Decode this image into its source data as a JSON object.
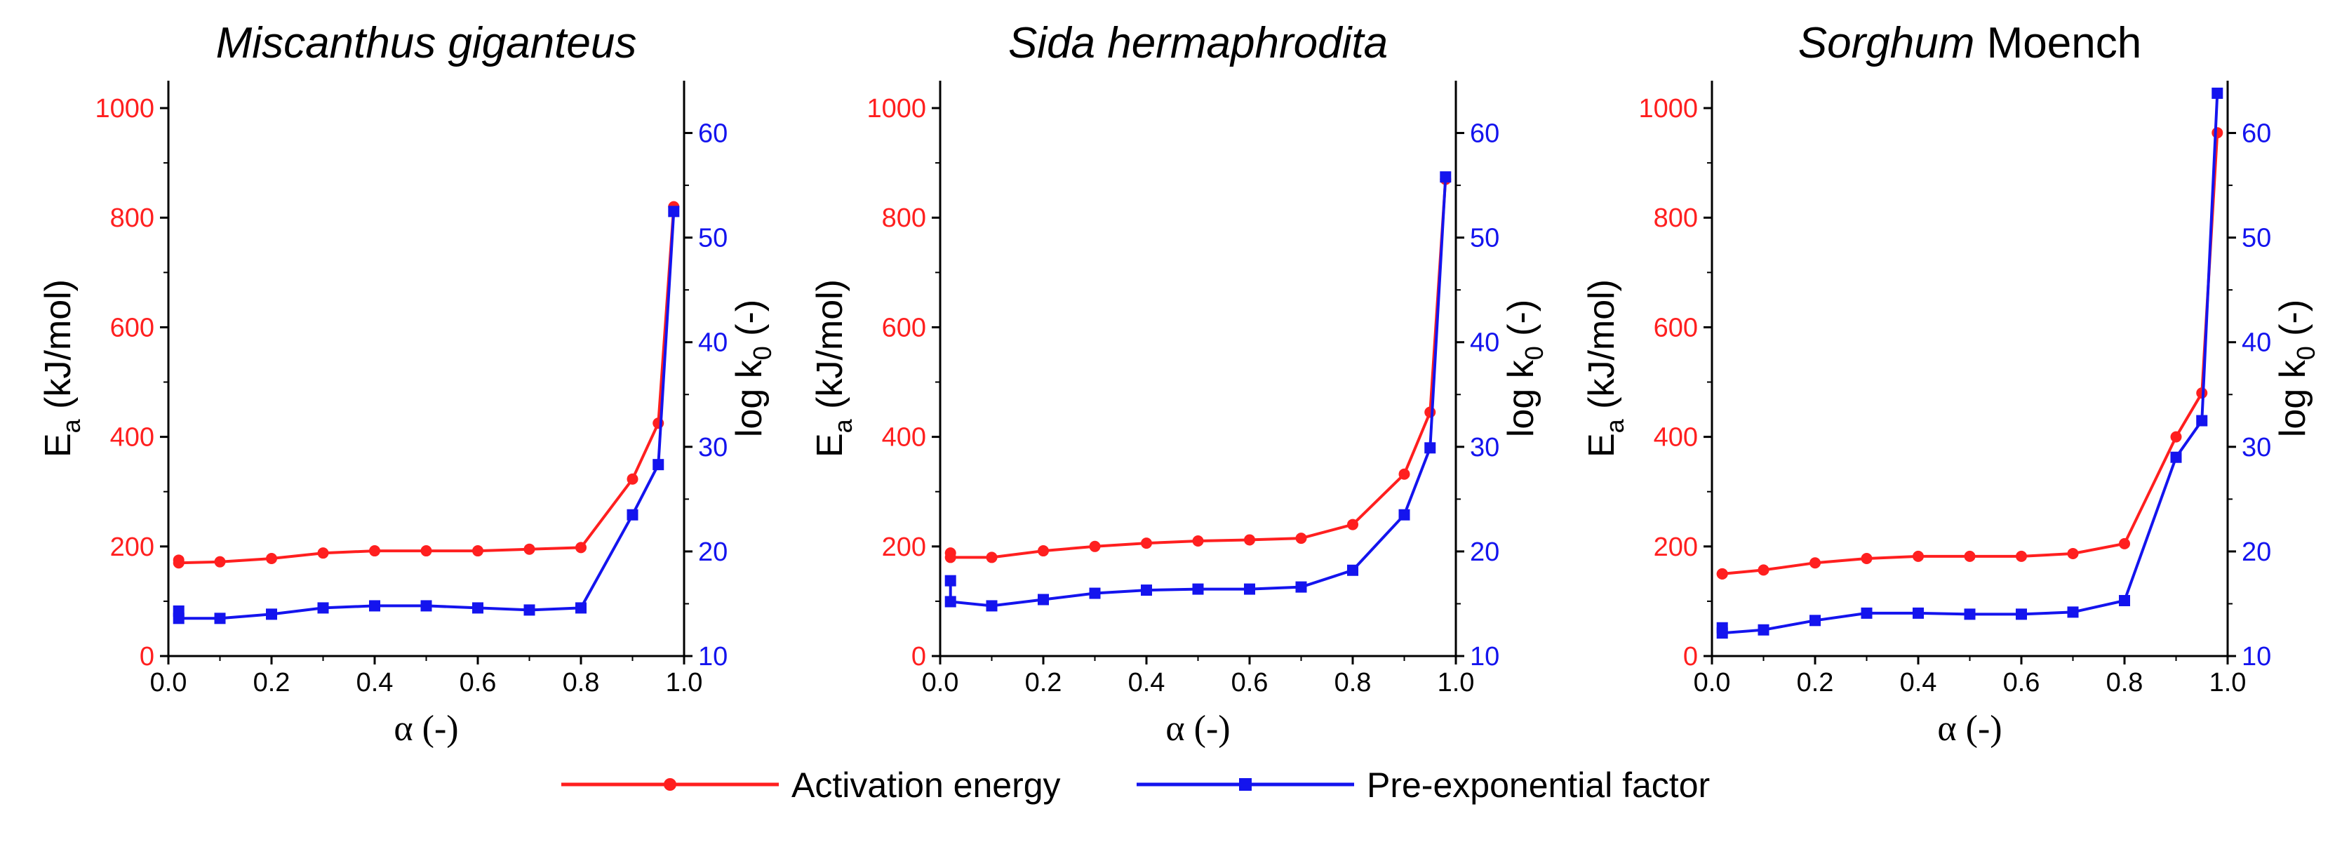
{
  "colors": {
    "energy": "#ff1f1f",
    "factor": "#1414ee",
    "axis": "#000000"
  },
  "legend": {
    "energy_label": "Activation energy",
    "factor_label": "Pre-exponential factor"
  },
  "chart_data": [
    {
      "type": "line",
      "title_italic": "Miscanthus giganteus",
      "title_plain": "",
      "xlabel": "α (-)",
      "ylabel_left": "E",
      "ylabel_left_sub": "a",
      "ylabel_left_unit": " (kJ/mol)",
      "ylabel_right": "log k",
      "ylabel_right_sub": "0",
      "ylabel_right_unit": " (-)",
      "xlim": [
        0,
        1
      ],
      "ylim_left": [
        0,
        1050
      ],
      "ylim_right": [
        10,
        65
      ],
      "xticks": [
        "0.0",
        "0.2",
        "0.4",
        "0.6",
        "0.8",
        "1.0"
      ],
      "yticks_left": [
        "0",
        "200",
        "400",
        "600",
        "800",
        "1000"
      ],
      "yticks_right": [
        "10",
        "20",
        "30",
        "40",
        "50",
        "60"
      ],
      "series": [
        {
          "name": "Activation energy",
          "axis": "left",
          "marker": "circle",
          "x": [
            0.02,
            0.02,
            0.1,
            0.2,
            0.3,
            0.4,
            0.5,
            0.6,
            0.7,
            0.8,
            0.9,
            0.95,
            0.98
          ],
          "y": [
            175,
            170,
            172,
            178,
            188,
            192,
            192,
            192,
            195,
            198,
            323,
            425,
            820
          ]
        },
        {
          "name": "Pre-exponential factor",
          "axis": "right",
          "marker": "square",
          "x": [
            0.02,
            0.02,
            0.1,
            0.2,
            0.3,
            0.4,
            0.5,
            0.6,
            0.7,
            0.8,
            0.9,
            0.95,
            0.98
          ],
          "y": [
            14.3,
            13.6,
            13.6,
            14.0,
            14.6,
            14.8,
            14.8,
            14.6,
            14.4,
            14.6,
            23.5,
            28.3,
            52.5
          ]
        }
      ]
    },
    {
      "type": "line",
      "title_italic": "Sida hermaphrodita",
      "title_plain": "",
      "xlabel": "α (-)",
      "ylabel_left": "E",
      "ylabel_left_sub": "a",
      "ylabel_left_unit": " (kJ/mol)",
      "ylabel_right": "log k",
      "ylabel_right_sub": "0",
      "ylabel_right_unit": " (-)",
      "xlim": [
        0,
        1
      ],
      "ylim_left": [
        0,
        1050
      ],
      "ylim_right": [
        10,
        65
      ],
      "xticks": [
        "0.0",
        "0.2",
        "0.4",
        "0.6",
        "0.8",
        "1.0"
      ],
      "yticks_left": [
        "0",
        "200",
        "400",
        "600",
        "800",
        "1000"
      ],
      "yticks_right": [
        "10",
        "20",
        "30",
        "40",
        "50",
        "60"
      ],
      "series": [
        {
          "name": "Activation energy",
          "axis": "left",
          "marker": "circle",
          "x": [
            0.02,
            0.02,
            0.1,
            0.2,
            0.3,
            0.4,
            0.5,
            0.6,
            0.7,
            0.8,
            0.9,
            0.95,
            0.98
          ],
          "y": [
            188,
            180,
            180,
            192,
            200,
            206,
            210,
            212,
            215,
            240,
            332,
            445,
            870
          ]
        },
        {
          "name": "Pre-exponential factor",
          "axis": "right",
          "marker": "square",
          "x": [
            0.02,
            0.02,
            0.1,
            0.2,
            0.3,
            0.4,
            0.5,
            0.6,
            0.7,
            0.8,
            0.9,
            0.95,
            0.98
          ],
          "y": [
            17.2,
            15.2,
            14.8,
            15.4,
            16.0,
            16.3,
            16.4,
            16.4,
            16.6,
            18.2,
            23.5,
            29.9,
            55.8
          ]
        }
      ]
    },
    {
      "type": "line",
      "title_italic": "Sorghum",
      "title_plain": " Moench",
      "xlabel": "α (-)",
      "ylabel_left": "E",
      "ylabel_left_sub": "a",
      "ylabel_left_unit": " (kJ/mol)",
      "ylabel_right": "log k",
      "ylabel_right_sub": "0",
      "ylabel_right_unit": " (-)",
      "xlim": [
        0,
        1
      ],
      "ylim_left": [
        0,
        1050
      ],
      "ylim_right": [
        10,
        65
      ],
      "xticks": [
        "0.0",
        "0.2",
        "0.4",
        "0.6",
        "0.8",
        "1.0"
      ],
      "yticks_left": [
        "0",
        "200",
        "400",
        "600",
        "800",
        "1000"
      ],
      "yticks_right": [
        "10",
        "20",
        "30",
        "40",
        "50",
        "60"
      ],
      "series": [
        {
          "name": "Activation energy",
          "axis": "left",
          "marker": "circle",
          "x": [
            0.02,
            0.02,
            0.1,
            0.2,
            0.3,
            0.4,
            0.5,
            0.6,
            0.7,
            0.8,
            0.9,
            0.95,
            0.98
          ],
          "y": [
            150,
            150,
            157,
            170,
            178,
            182,
            182,
            182,
            187,
            205,
            400,
            480,
            955
          ]
        },
        {
          "name": "Pre-exponential factor",
          "axis": "right",
          "marker": "square",
          "x": [
            0.02,
            0.02,
            0.1,
            0.2,
            0.3,
            0.4,
            0.5,
            0.6,
            0.7,
            0.8,
            0.9,
            0.95,
            0.98
          ],
          "y": [
            12.7,
            12.2,
            12.5,
            13.4,
            14.1,
            14.1,
            14.0,
            14.0,
            14.2,
            15.3,
            29.0,
            32.5,
            63.8
          ]
        }
      ]
    }
  ]
}
